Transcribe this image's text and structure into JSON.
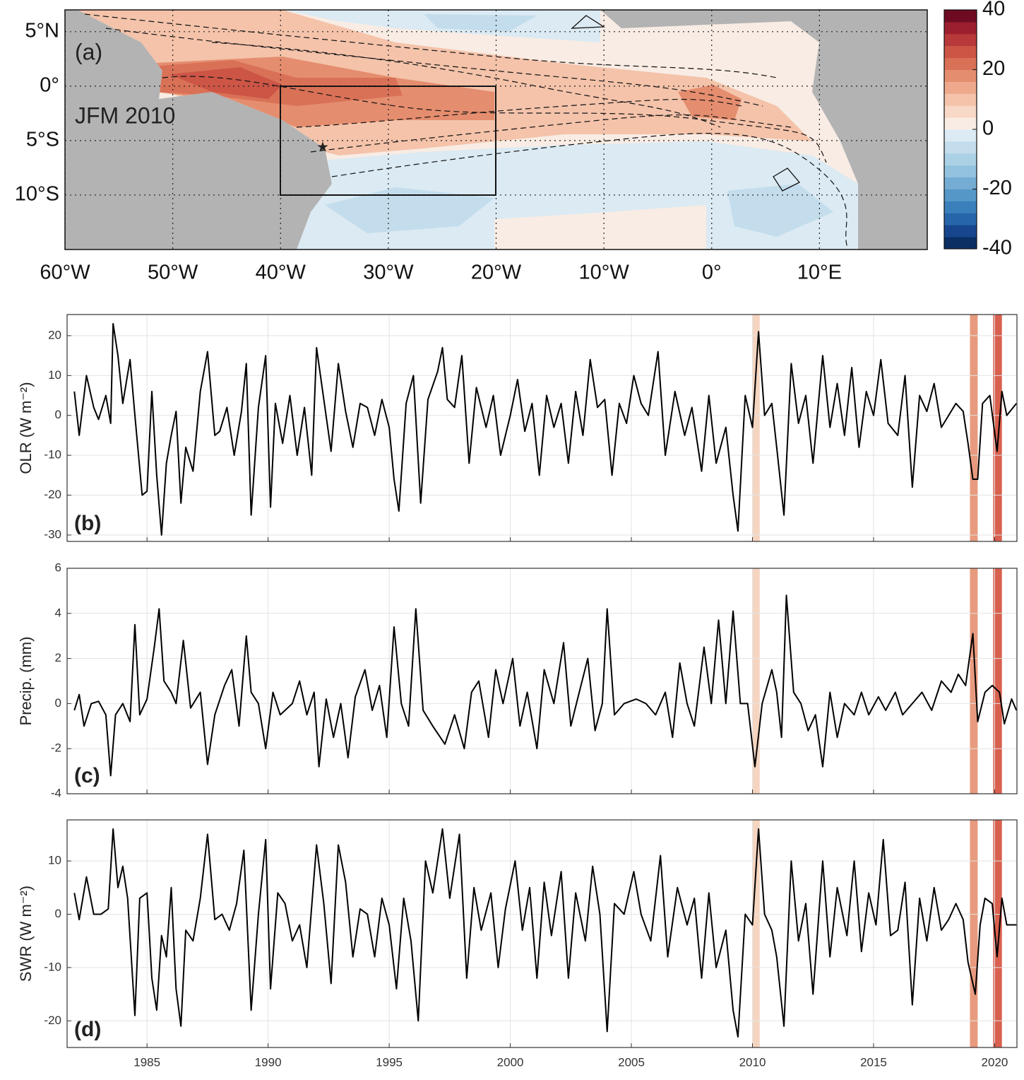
{
  "chart_data": [
    {
      "type": "map",
      "panel_label": "(a)",
      "annotation": "JFM 2010",
      "xlim": [
        -60,
        20
      ],
      "ylim": [
        -15,
        7
      ],
      "grid": true,
      "xticks": [
        {
          "value": -60,
          "label": "60°W"
        },
        {
          "value": -50,
          "label": "50°W"
        },
        {
          "value": -40,
          "label": "40°W"
        },
        {
          "value": -30,
          "label": "30°W"
        },
        {
          "value": -20,
          "label": "20°W"
        },
        {
          "value": -10,
          "label": "10°W"
        },
        {
          "value": 0,
          "label": "0°"
        },
        {
          "value": 10,
          "label": "10°E"
        }
      ],
      "yticks": [
        {
          "value": 5,
          "label": "5°N"
        },
        {
          "value": 0,
          "label": "0°"
        },
        {
          "value": -5,
          "label": "5°S"
        },
        {
          "value": -10,
          "label": "10°S"
        }
      ],
      "colorbar": {
        "lim": [
          -40,
          40
        ],
        "ticks": [
          40,
          20,
          0,
          -20,
          -40
        ],
        "colors": [
          "#0b2f63",
          "#17468d",
          "#2765ab",
          "#3a80bb",
          "#5598c8",
          "#74acd3",
          "#92c2de",
          "#aad1e6",
          "#c3ddec",
          "#dbeaf3",
          "#f8ece4",
          "#f8d8c6",
          "#f4c3aa",
          "#eea98c",
          "#e58d6f",
          "#d97157",
          "#cc5546",
          "#b8393a",
          "#9c1f2f",
          "#6e0b22"
        ]
      }
    },
    {
      "type": "line",
      "panel_label": "(b)",
      "y_label": "OLR (W m⁻²)",
      "xlim": [
        1981.7,
        2020.92
      ],
      "ylim": [
        -31.6,
        25.3
      ],
      "grid": true,
      "xticks": [
        1985,
        1990,
        1995,
        2000,
        2005,
        2010,
        2015,
        2020
      ],
      "yticks": [
        -30,
        -20,
        -10,
        0,
        10,
        20
      ],
      "highlights": [
        {
          "start": 2010.0,
          "end": 2010.3,
          "color": "#f5d5c0"
        },
        {
          "start": 2018.98,
          "end": 2019.3,
          "color": "#e89a7e"
        },
        {
          "start": 2019.94,
          "end": 2020.3,
          "color": "#d9604e"
        }
      ],
      "x": [
        1982.0,
        1982.2,
        1982.5,
        1982.8,
        1983.0,
        1983.3,
        1983.5,
        1983.6,
        1983.8,
        1984.0,
        1984.3,
        1984.5,
        1984.8,
        1985.0,
        1985.2,
        1985.4,
        1985.6,
        1985.8,
        1986.0,
        1986.2,
        1986.4,
        1986.6,
        1986.9,
        1987.2,
        1987.5,
        1987.8,
        1988.0,
        1988.3,
        1988.6,
        1988.9,
        1989.1,
        1989.3,
        1989.6,
        1989.9,
        1990.1,
        1990.3,
        1990.6,
        1990.9,
        1991.2,
        1991.5,
        1991.8,
        1992.0,
        1992.3,
        1992.6,
        1992.9,
        1993.2,
        1993.5,
        1993.8,
        1994.1,
        1994.4,
        1994.7,
        1995.0,
        1995.2,
        1995.4,
        1995.7,
        1996.0,
        1996.3,
        1996.6,
        1997.0,
        1997.2,
        1997.4,
        1997.7,
        1998.0,
        1998.3,
        1998.6,
        1999.0,
        1999.3,
        1999.6,
        2000.0,
        2000.3,
        2000.6,
        2000.9,
        2001.2,
        2001.5,
        2001.8,
        2002.1,
        2002.4,
        2002.7,
        2003.0,
        2003.3,
        2003.6,
        2003.9,
        2004.2,
        2004.5,
        2004.8,
        2005.1,
        2005.4,
        2005.7,
        2006.1,
        2006.4,
        2006.8,
        2007.2,
        2007.5,
        2007.9,
        2008.2,
        2008.5,
        2008.9,
        2009.2,
        2009.4,
        2009.7,
        2010.0,
        2010.25,
        2010.5,
        2010.8,
        2011.0,
        2011.3,
        2011.6,
        2011.9,
        2012.2,
        2012.5,
        2012.9,
        2013.2,
        2013.5,
        2013.8,
        2014.1,
        2014.4,
        2014.7,
        2015.0,
        2015.3,
        2015.6,
        2016.0,
        2016.3,
        2016.6,
        2016.9,
        2017.2,
        2017.5,
        2017.8,
        2018.1,
        2018.4,
        2018.7,
        2018.9,
        2019.1,
        2019.3,
        2019.5,
        2019.8,
        2020.1,
        2020.3,
        2020.5,
        2020.9
      ],
      "series": [
        {
          "color": "#000000",
          "values": [
            6,
            -5,
            10,
            2,
            -1,
            5,
            -2,
            23,
            15,
            3,
            14,
            0,
            -20,
            -19,
            6,
            -15,
            -30,
            -12,
            -5,
            1,
            -22,
            -8,
            -14,
            6,
            16,
            -5,
            -4,
            2,
            -10,
            1,
            13,
            -25,
            2,
            15,
            -23,
            3,
            -7,
            5,
            -10,
            2,
            -15,
            17,
            4,
            -9,
            13,
            1,
            -8,
            3,
            2,
            -5,
            4,
            -3,
            -16,
            -24,
            3,
            10,
            -22,
            4,
            11,
            17,
            4,
            2,
            15,
            -12,
            7,
            -3,
            5,
            -10,
            0,
            9,
            -4,
            3,
            -15,
            5,
            -3,
            3,
            -12,
            6,
            -5,
            14,
            2,
            4,
            -15,
            3,
            -2,
            10,
            3,
            0,
            16,
            -10,
            6,
            -5,
            2,
            -14,
            5,
            -12,
            -3,
            -20,
            -29,
            5,
            -3,
            21,
            0,
            3,
            -8,
            -25,
            13,
            -2,
            5,
            -12,
            15,
            -3,
            8,
            -5,
            12,
            -8,
            6,
            0,
            14,
            -2,
            -5,
            10,
            -18,
            5,
            1,
            8,
            -3,
            0,
            3,
            1,
            -7,
            -16,
            -16,
            3,
            5,
            -9,
            6,
            0,
            3
          ]
        }
      ]
    },
    {
      "type": "line",
      "panel_label": "(c)",
      "y_label": "Precip. (mm)",
      "xlim": [
        1981.7,
        2020.92
      ],
      "ylim": [
        -4,
        6
      ],
      "grid": true,
      "xticks": [
        1985,
        1990,
        1995,
        2000,
        2005,
        2010,
        2015,
        2020
      ],
      "yticks": [
        -4,
        -2,
        0,
        2,
        4,
        6
      ],
      "highlights": [
        {
          "start": 2010.0,
          "end": 2010.3,
          "color": "#f5d5c0"
        },
        {
          "start": 2018.98,
          "end": 2019.3,
          "color": "#e89a7e"
        },
        {
          "start": 2019.94,
          "end": 2020.3,
          "color": "#d9604e"
        }
      ],
      "x": [
        1982.0,
        1982.2,
        1982.4,
        1982.7,
        1983.0,
        1983.3,
        1983.5,
        1983.7,
        1984.0,
        1984.3,
        1984.5,
        1984.7,
        1985.0,
        1985.3,
        1985.5,
        1985.7,
        1986.0,
        1986.2,
        1986.5,
        1986.8,
        1987.2,
        1987.5,
        1987.8,
        1988.2,
        1988.5,
        1988.8,
        1989.1,
        1989.3,
        1989.6,
        1989.9,
        1990.2,
        1990.5,
        1991.0,
        1991.3,
        1991.6,
        1991.9,
        1992.1,
        1992.4,
        1992.7,
        1993.0,
        1993.3,
        1993.6,
        1994.0,
        1994.3,
        1994.6,
        1994.9,
        1995.2,
        1995.5,
        1995.8,
        1996.1,
        1996.4,
        1996.8,
        1997.3,
        1997.7,
        1998.1,
        1998.4,
        1998.7,
        1999.1,
        1999.4,
        1999.7,
        2000.1,
        2000.4,
        2000.7,
        2001.1,
        2001.4,
        2001.8,
        2002.2,
        2002.5,
        2002.8,
        2003.2,
        2003.5,
        2003.8,
        2004.0,
        2004.3,
        2004.7,
        2005.2,
        2005.6,
        2006.0,
        2006.4,
        2006.7,
        2007.0,
        2007.3,
        2007.6,
        2008.0,
        2008.3,
        2008.6,
        2008.9,
        2009.2,
        2009.5,
        2009.8,
        2010.1,
        2010.4,
        2010.8,
        2011.0,
        2011.2,
        2011.4,
        2011.7,
        2012.0,
        2012.3,
        2012.6,
        2012.9,
        2013.2,
        2013.5,
        2013.8,
        2014.2,
        2014.5,
        2014.8,
        2015.2,
        2015.5,
        2015.9,
        2016.2,
        2016.6,
        2017.0,
        2017.4,
        2017.8,
        2018.2,
        2018.5,
        2018.8,
        2019.1,
        2019.3,
        2019.6,
        2019.9,
        2020.2,
        2020.4,
        2020.7,
        2020.9
      ],
      "series": [
        {
          "color": "#000000",
          "values": [
            -0.3,
            0.4,
            -1,
            0,
            0.1,
            -0.5,
            -3.2,
            -0.5,
            0,
            -0.8,
            3.5,
            -0.5,
            0.2,
            2.5,
            4.2,
            1,
            0.5,
            0,
            2.8,
            -0.2,
            0.5,
            -2.7,
            -0.5,
            0.8,
            1.5,
            -1,
            3,
            0.5,
            0,
            -2,
            0.5,
            -0.5,
            0,
            1,
            -0.5,
            0.5,
            -2.8,
            0.2,
            -1.5,
            0,
            -2.4,
            0.3,
            1.5,
            -0.3,
            0.8,
            -1.5,
            3.4,
            0,
            -1,
            4.2,
            -0.3,
            -1,
            -1.8,
            -0.5,
            -2,
            0.5,
            1,
            -1.5,
            1.5,
            0,
            2,
            -1,
            0.5,
            -2,
            1.5,
            0,
            2.7,
            -1,
            0.3,
            2,
            -1.2,
            0,
            4.2,
            -0.5,
            0,
            0.2,
            0,
            -0.5,
            0.5,
            -1.5,
            1.8,
            0,
            -1,
            2.5,
            0,
            3.7,
            0,
            4.1,
            0,
            0,
            -2.8,
            0,
            1.5,
            0.5,
            -1.5,
            4.8,
            0.5,
            0,
            -1.2,
            -0.5,
            -2.8,
            0.5,
            -1.5,
            0,
            -0.5,
            0.5,
            -0.5,
            0.3,
            -0.3,
            0.5,
            -0.5,
            0,
            0.5,
            -0.3,
            1,
            0.5,
            1.3,
            0.8,
            3.1,
            -0.8,
            0.5,
            0.8,
            0.5,
            -0.9,
            0.2,
            -0.3
          ]
        }
      ]
    },
    {
      "type": "line",
      "panel_label": "(d)",
      "y_label": "SWR (W m⁻²)",
      "xlim": [
        1981.7,
        2020.92
      ],
      "ylim": [
        -25,
        17.7
      ],
      "grid": true,
      "xticks": [
        1985,
        1990,
        1995,
        2000,
        2005,
        2010,
        2015,
        2020
      ],
      "yticks": [
        -20,
        -10,
        0,
        10
      ],
      "highlights": [
        {
          "start": 2010.0,
          "end": 2010.3,
          "color": "#f5d5c0"
        },
        {
          "start": 2018.98,
          "end": 2019.3,
          "color": "#e89a7e"
        },
        {
          "start": 2019.94,
          "end": 2020.3,
          "color": "#d9604e"
        }
      ],
      "x": [
        1982.0,
        1982.2,
        1982.5,
        1982.8,
        1983.1,
        1983.4,
        1983.6,
        1983.8,
        1984.0,
        1984.2,
        1984.5,
        1984.7,
        1985.0,
        1985.2,
        1985.4,
        1985.6,
        1985.8,
        1986.0,
        1986.2,
        1986.4,
        1986.6,
        1986.9,
        1987.2,
        1987.5,
        1987.8,
        1988.1,
        1988.4,
        1988.7,
        1989.0,
        1989.3,
        1989.6,
        1989.9,
        1990.1,
        1990.4,
        1990.7,
        1991.0,
        1991.3,
        1991.6,
        1992.0,
        1992.3,
        1992.6,
        1992.9,
        1993.2,
        1993.5,
        1993.8,
        1994.1,
        1994.4,
        1994.7,
        1995.0,
        1995.3,
        1995.6,
        1995.9,
        1996.2,
        1996.5,
        1996.8,
        1997.2,
        1997.5,
        1997.9,
        1998.2,
        1998.5,
        1998.8,
        1999.2,
        1999.5,
        1999.8,
        2000.2,
        2000.5,
        2000.8,
        2001.1,
        2001.4,
        2001.7,
        2002.1,
        2002.4,
        2002.7,
        2003.1,
        2003.4,
        2003.7,
        2004.0,
        2004.3,
        2004.7,
        2005.1,
        2005.4,
        2005.8,
        2006.2,
        2006.5,
        2006.9,
        2007.3,
        2007.6,
        2007.9,
        2008.2,
        2008.5,
        2008.9,
        2009.2,
        2009.4,
        2009.7,
        2010.0,
        2010.25,
        2010.5,
        2010.8,
        2011.0,
        2011.3,
        2011.6,
        2011.9,
        2012.2,
        2012.5,
        2012.9,
        2013.2,
        2013.5,
        2013.9,
        2014.2,
        2014.5,
        2014.8,
        2015.1,
        2015.4,
        2015.7,
        2016.0,
        2016.3,
        2016.6,
        2016.9,
        2017.2,
        2017.5,
        2017.8,
        2018.1,
        2018.4,
        2018.7,
        2018.9,
        2019.2,
        2019.4,
        2019.6,
        2019.9,
        2020.1,
        2020.3,
        2020.5,
        2020.9
      ],
      "series": [
        {
          "color": "#000000",
          "values": [
            4,
            -1,
            7,
            0,
            0,
            1,
            16,
            5,
            9,
            3,
            -19,
            3,
            4,
            -12,
            -18,
            -4,
            -8,
            5,
            -14,
            -21,
            -3,
            -5,
            3,
            15,
            -1,
            0,
            -3,
            2,
            12,
            -18,
            0,
            14,
            -14,
            4,
            2,
            -5,
            -2,
            -10,
            13,
            2,
            -13,
            13,
            6,
            -8,
            1,
            0,
            -8,
            3,
            -2,
            -14,
            3,
            -5,
            -20,
            10,
            4,
            16,
            3,
            15,
            -12,
            5,
            -3,
            4,
            -10,
            1,
            10,
            -3,
            5,
            -12,
            6,
            -4,
            8,
            -12,
            4,
            -5,
            9,
            0,
            -22,
            2,
            0,
            8,
            0,
            -5,
            11,
            -8,
            5,
            -2,
            3,
            -12,
            4,
            -10,
            -3,
            -18,
            -23,
            0,
            -2,
            16,
            0,
            -3,
            -8,
            -21,
            10,
            -5,
            2,
            -15,
            10,
            -8,
            5,
            -4,
            10,
            -7,
            4,
            -2,
            14,
            -4,
            -3,
            6,
            -17,
            3,
            -5,
            5,
            -3,
            -1,
            2,
            -1,
            -9,
            -15,
            -2,
            3,
            2,
            -8,
            3,
            -2,
            -2
          ]
        }
      ]
    }
  ]
}
